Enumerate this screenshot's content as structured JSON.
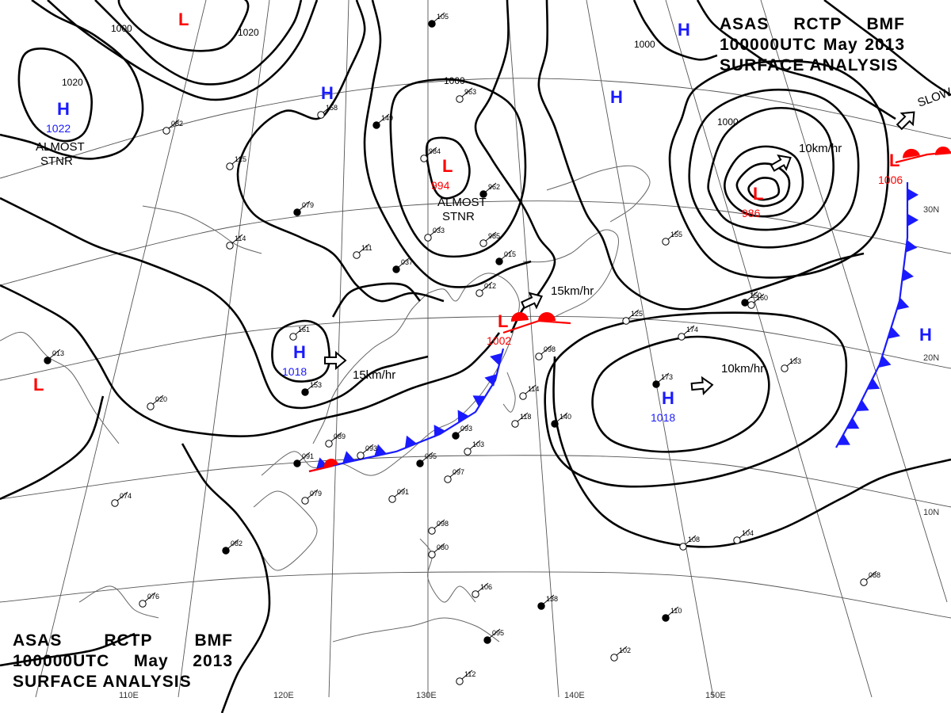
{
  "chart_title": {
    "line1": [
      "ASAS",
      "RCTP",
      "BMF"
    ],
    "line2": [
      "100000UTC",
      "May",
      "2013"
    ],
    "line3": "SURFACE ANALYSIS"
  },
  "colors": {
    "high": "#1a1aff",
    "low": "#ff0000",
    "cold_front": "#1a1aff",
    "warm_front": "#ff0000",
    "isobar": "#000000",
    "grid": "#555555",
    "coast": "#666666"
  },
  "longitude_labels": [
    {
      "text": "110E"
    },
    {
      "text": "120E"
    },
    {
      "text": "130E"
    },
    {
      "text": "140E"
    },
    {
      "text": "150E"
    }
  ],
  "latitude_labels": [
    {
      "text": "30N"
    },
    {
      "text": "20N"
    },
    {
      "text": "10N"
    }
  ],
  "isobar_labels": [
    "1020",
    "1000",
    "1000",
    "1000",
    "1000",
    "1020"
  ],
  "pressure_centers": [
    {
      "type": "H",
      "value": "1022"
    },
    {
      "type": "H",
      "value": ""
    },
    {
      "type": "H",
      "value": ""
    },
    {
      "type": "H",
      "value": ""
    },
    {
      "type": "H",
      "value": "1018"
    },
    {
      "type": "H",
      "value": "1018"
    },
    {
      "type": "H",
      "value": ""
    },
    {
      "type": "L",
      "value": ""
    },
    {
      "type": "L",
      "value": "994"
    },
    {
      "type": "L",
      "value": "986"
    },
    {
      "type": "L",
      "value": "1002"
    },
    {
      "type": "L",
      "value": "1006"
    },
    {
      "type": "L",
      "value": ""
    }
  ],
  "movement_annotations": [
    "ALMOST STNR",
    "ALMOST STNR",
    "15km/hr",
    "15km/hr",
    "10km/hr",
    "10km/hr",
    "SLOW"
  ],
  "station_numbers": [
    "105",
    "082",
    "125",
    "079",
    "114",
    "111",
    "037",
    "033",
    "985",
    "015",
    "012",
    "161",
    "153",
    "089",
    "093",
    "091",
    "079",
    "091",
    "095",
    "097",
    "103",
    "093",
    "114",
    "118",
    "140",
    "098",
    "133",
    "173",
    "174",
    "125",
    "150",
    "155",
    "158",
    "149",
    "963",
    "984",
    "962",
    "108",
    "104",
    "110",
    "102",
    "088",
    "138",
    "106",
    "112",
    "095",
    "080",
    "098",
    "082",
    "076",
    "074",
    "013",
    "020",
    "160"
  ]
}
